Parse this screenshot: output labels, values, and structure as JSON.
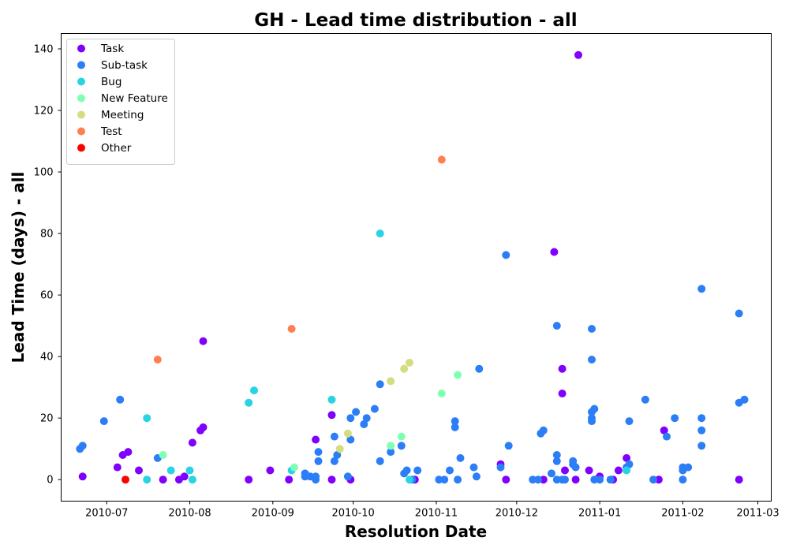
{
  "chart_data": {
    "type": "scatter",
    "title": "GH - Lead time distribution - all",
    "xlabel": "Resolution Date",
    "ylabel": "Lead Time (days) - all",
    "xlim": [
      "2010-06-14",
      "2011-03-06"
    ],
    "ylim": [
      -7,
      145
    ],
    "x_ticks": [
      "2010-07",
      "2010-08",
      "2010-09",
      "2010-10",
      "2010-11",
      "2010-12",
      "2011-01",
      "2011-02",
      "2011-03"
    ],
    "x_tick_dates": [
      "2010-07-01",
      "2010-08-01",
      "2010-09-01",
      "2010-10-01",
      "2010-11-01",
      "2010-12-01",
      "2011-01-01",
      "2011-02-01",
      "2011-03-01"
    ],
    "y_ticks": [
      0,
      20,
      40,
      60,
      80,
      100,
      120,
      140
    ],
    "grid": false,
    "legend_position": "top-left",
    "series": [
      {
        "name": "Task",
        "color": "#8000ff",
        "points": [
          [
            "2010-06-22",
            1
          ],
          [
            "2010-07-05",
            4
          ],
          [
            "2010-07-07",
            8
          ],
          [
            "2010-07-09",
            9
          ],
          [
            "2010-07-13",
            3
          ],
          [
            "2010-07-22",
            0
          ],
          [
            "2010-07-28",
            0
          ],
          [
            "2010-07-30",
            1
          ],
          [
            "2010-08-02",
            12
          ],
          [
            "2010-08-05",
            16
          ],
          [
            "2010-08-06",
            17
          ],
          [
            "2010-08-06",
            45
          ],
          [
            "2010-08-23",
            0
          ],
          [
            "2010-08-31",
            3
          ],
          [
            "2010-09-07",
            0
          ],
          [
            "2010-09-17",
            13
          ],
          [
            "2010-09-23",
            21
          ],
          [
            "2010-09-23",
            0
          ],
          [
            "2010-09-30",
            0
          ],
          [
            "2010-10-24",
            0
          ],
          [
            "2010-11-25",
            5
          ],
          [
            "2010-11-27",
            0
          ],
          [
            "2010-12-11",
            0
          ],
          [
            "2010-12-15",
            74
          ],
          [
            "2010-12-18",
            36
          ],
          [
            "2010-12-18",
            28
          ],
          [
            "2010-12-19",
            3
          ],
          [
            "2010-12-23",
            0
          ],
          [
            "2010-12-24",
            138
          ],
          [
            "2010-12-28",
            3
          ],
          [
            "2011-01-01",
            1
          ],
          [
            "2011-01-06",
            0
          ],
          [
            "2011-01-08",
            3
          ],
          [
            "2011-01-11",
            7
          ],
          [
            "2011-01-23",
            0
          ],
          [
            "2011-01-25",
            16
          ],
          [
            "2011-02-22",
            0
          ]
        ]
      },
      {
        "name": "Sub-task",
        "color": "#2c7ef7",
        "points": [
          [
            "2010-06-21",
            10
          ],
          [
            "2010-06-22",
            11
          ],
          [
            "2010-06-30",
            19
          ],
          [
            "2010-07-06",
            26
          ],
          [
            "2010-07-20",
            7
          ],
          [
            "2010-09-13",
            1
          ],
          [
            "2010-09-13",
            2
          ],
          [
            "2010-09-15",
            1
          ],
          [
            "2010-09-17",
            0
          ],
          [
            "2010-09-17",
            1
          ],
          [
            "2010-09-18",
            6
          ],
          [
            "2010-09-18",
            9
          ],
          [
            "2010-09-24",
            6
          ],
          [
            "2010-09-24",
            14
          ],
          [
            "2010-09-25",
            8
          ],
          [
            "2010-09-29",
            1
          ],
          [
            "2010-09-30",
            20
          ],
          [
            "2010-09-30",
            13
          ],
          [
            "2010-10-02",
            22
          ],
          [
            "2010-10-05",
            18
          ],
          [
            "2010-10-06",
            20
          ],
          [
            "2010-10-09",
            23
          ],
          [
            "2010-10-11",
            31
          ],
          [
            "2010-10-11",
            6
          ],
          [
            "2010-10-15",
            9
          ],
          [
            "2010-10-19",
            11
          ],
          [
            "2010-10-20",
            2
          ],
          [
            "2010-10-21",
            3
          ],
          [
            "2010-10-23",
            0
          ],
          [
            "2010-10-25",
            3
          ],
          [
            "2010-11-02",
            0
          ],
          [
            "2010-11-04",
            0
          ],
          [
            "2010-11-06",
            3
          ],
          [
            "2010-11-08",
            19
          ],
          [
            "2010-11-08",
            17
          ],
          [
            "2010-11-09",
            0
          ],
          [
            "2010-11-10",
            7
          ],
          [
            "2010-11-15",
            4
          ],
          [
            "2010-11-16",
            1
          ],
          [
            "2010-11-17",
            36
          ],
          [
            "2010-11-25",
            4
          ],
          [
            "2010-11-27",
            73
          ],
          [
            "2010-11-28",
            11
          ],
          [
            "2010-12-07",
            0
          ],
          [
            "2010-12-09",
            0
          ],
          [
            "2010-12-10",
            15
          ],
          [
            "2010-12-11",
            16
          ],
          [
            "2010-12-14",
            2
          ],
          [
            "2010-12-16",
            50
          ],
          [
            "2010-12-16",
            8
          ],
          [
            "2010-12-16",
            6
          ],
          [
            "2010-12-16",
            0
          ],
          [
            "2010-12-18",
            0
          ],
          [
            "2010-12-19",
            0
          ],
          [
            "2010-12-22",
            6
          ],
          [
            "2010-12-22",
            5
          ],
          [
            "2010-12-23",
            4
          ],
          [
            "2010-12-29",
            49
          ],
          [
            "2010-12-29",
            39
          ],
          [
            "2010-12-29",
            22
          ],
          [
            "2010-12-29",
            20
          ],
          [
            "2010-12-29",
            19
          ],
          [
            "2010-12-30",
            23
          ],
          [
            "2010-12-30",
            0
          ],
          [
            "2011-01-01",
            0
          ],
          [
            "2011-01-05",
            0
          ],
          [
            "2011-01-11",
            4
          ],
          [
            "2011-01-12",
            19
          ],
          [
            "2011-01-12",
            5
          ],
          [
            "2011-01-18",
            26
          ],
          [
            "2011-01-21",
            0
          ],
          [
            "2011-01-26",
            14
          ],
          [
            "2011-01-29",
            20
          ],
          [
            "2011-02-01",
            0
          ],
          [
            "2011-02-01",
            3
          ],
          [
            "2011-02-01",
            4
          ],
          [
            "2011-02-03",
            4
          ],
          [
            "2011-02-08",
            62
          ],
          [
            "2011-02-08",
            20
          ],
          [
            "2011-02-08",
            16
          ],
          [
            "2011-02-08",
            11
          ],
          [
            "2011-02-22",
            54
          ],
          [
            "2011-02-22",
            25
          ],
          [
            "2011-02-24",
            26
          ]
        ]
      },
      {
        "name": "Bug",
        "color": "#28d3e3",
        "points": [
          [
            "2010-07-16",
            20
          ],
          [
            "2010-07-16",
            0
          ],
          [
            "2010-07-25",
            3
          ],
          [
            "2010-08-01",
            3
          ],
          [
            "2010-08-02",
            0
          ],
          [
            "2010-08-23",
            25
          ],
          [
            "2010-08-25",
            29
          ],
          [
            "2010-09-08",
            3
          ],
          [
            "2010-09-23",
            26
          ],
          [
            "2010-10-11",
            80
          ],
          [
            "2010-10-22",
            0
          ],
          [
            "2011-01-11",
            3
          ]
        ]
      },
      {
        "name": "New Feature",
        "color": "#80ffb4",
        "points": [
          [
            "2010-07-22",
            8
          ],
          [
            "2010-09-09",
            4
          ],
          [
            "2010-10-15",
            11
          ],
          [
            "2010-10-19",
            14
          ],
          [
            "2010-11-03",
            28
          ],
          [
            "2010-11-09",
            34
          ]
        ]
      },
      {
        "name": "Meeting",
        "color": "#d4dd80",
        "points": [
          [
            "2010-09-26",
            10
          ],
          [
            "2010-09-29",
            15
          ],
          [
            "2010-10-15",
            32
          ],
          [
            "2010-10-20",
            36
          ],
          [
            "2010-10-22",
            38
          ]
        ]
      },
      {
        "name": "Test",
        "color": "#ff7f4e",
        "points": [
          [
            "2010-07-20",
            39
          ],
          [
            "2010-09-08",
            49
          ],
          [
            "2010-11-03",
            104
          ]
        ]
      },
      {
        "name": "Other",
        "color": "#ff0000",
        "points": [
          [
            "2010-07-08",
            0
          ]
        ]
      }
    ]
  }
}
